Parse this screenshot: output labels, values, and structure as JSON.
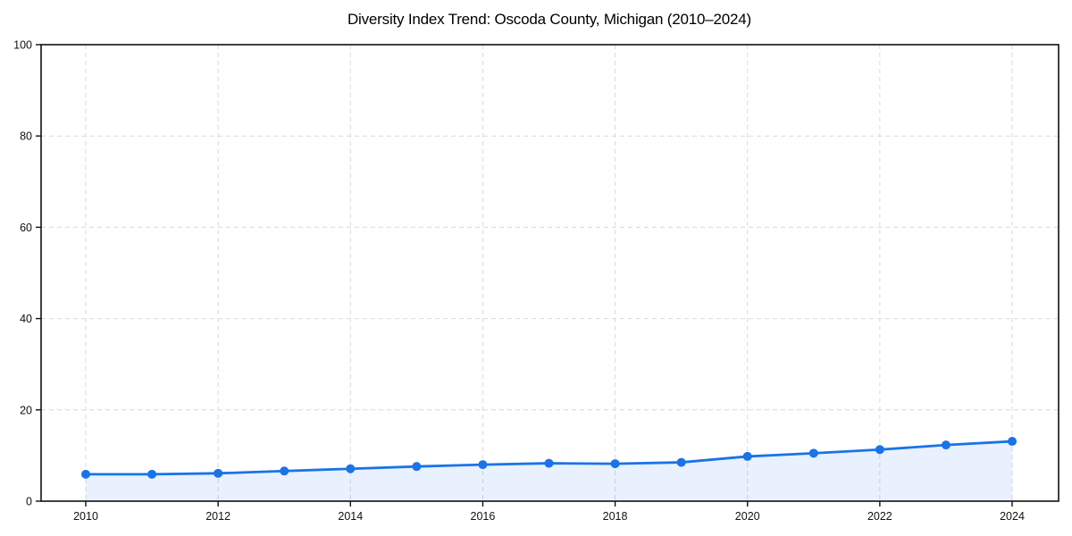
{
  "page": {
    "title": "Diversity Index Trend: Oscoda County, Michigan (2010–2024)"
  },
  "chart_data": {
    "type": "line",
    "title": "Diversity Index Trend: Oscoda County, Michigan (2010–2024)",
    "x": [
      2010,
      2011,
      2012,
      2013,
      2014,
      2015,
      2016,
      2017,
      2018,
      2019,
      2020,
      2021,
      2022,
      2023,
      2024
    ],
    "series": [
      {
        "name": "Diversity Index",
        "values": [
          5.9,
          5.9,
          6.1,
          6.6,
          7.1,
          7.6,
          8.0,
          8.3,
          8.2,
          8.5,
          9.8,
          10.5,
          11.3,
          12.3,
          13.1
        ]
      }
    ],
    "xlabel": "",
    "ylabel": "",
    "ylim": [
      0,
      100
    ],
    "yticks": [
      0,
      20,
      40,
      60,
      80,
      100
    ],
    "xticks": [
      2010,
      2012,
      2014,
      2016,
      2018,
      2020,
      2022,
      2024
    ],
    "grid": true,
    "grid_style": "dashed",
    "legend_position": "none",
    "line_color": "#1a73e8",
    "fill_color": "rgba(26,115,232,0.10)",
    "marker": "circle",
    "frame_color": "#111111",
    "grid_color": "#d9d9d9",
    "tick_label_color": "#111111"
  }
}
